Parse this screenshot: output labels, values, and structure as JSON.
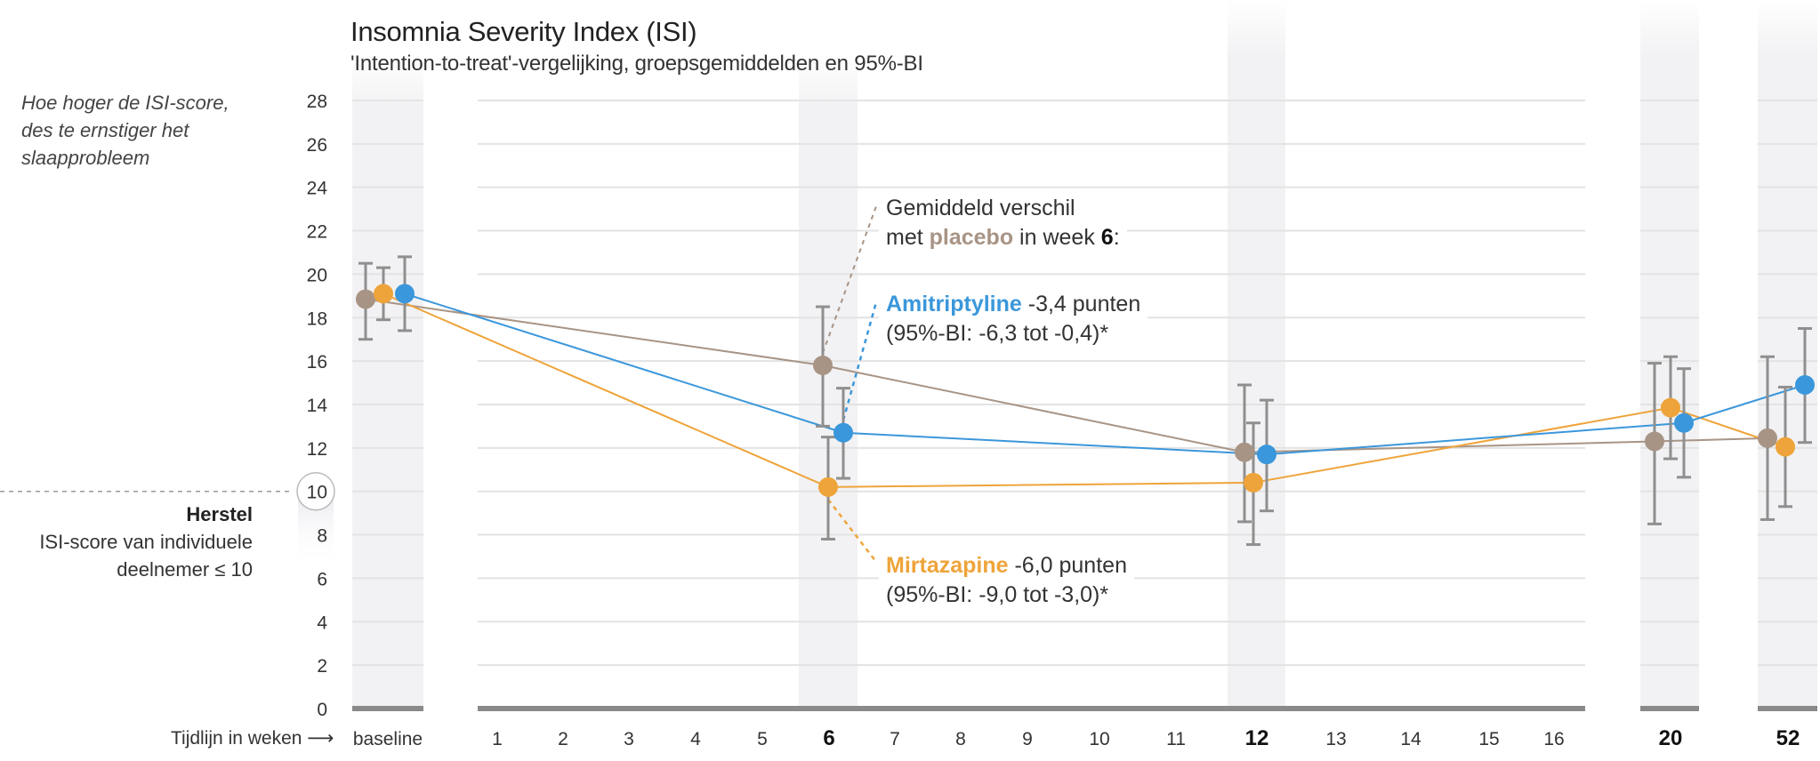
{
  "chart_data": {
    "type": "line",
    "title": "Insomnia Severity Index (ISI)",
    "subtitle": "'Intention-to-treat'-vergelijking, groepsgemiddelden en 95%-BI",
    "ylabel_note": [
      "Hoe hoger de ISI-score,",
      "des te ernstiger het",
      "slaapprobleem"
    ],
    "xlabel": "Tijdlijn in weken",
    "ylim": [
      0,
      28
    ],
    "yticks": [
      0,
      2,
      4,
      6,
      8,
      10,
      12,
      14,
      16,
      18,
      20,
      22,
      24,
      26,
      28
    ],
    "highlight_ytick": 10,
    "grid": true,
    "x_tick_labels": [
      "baseline",
      "1",
      "2",
      "3",
      "4",
      "5",
      "6",
      "7",
      "8",
      "9",
      "10",
      "11",
      "12",
      "13",
      "14",
      "15",
      "16",
      "20",
      "52"
    ],
    "bold_x_ticks": [
      "6",
      "12",
      "20",
      "52"
    ],
    "measurement_points": [
      "baseline",
      "6",
      "12",
      "20",
      "52"
    ],
    "series": [
      {
        "name": "placebo",
        "color": "#a89485",
        "values": [
          18.85,
          15.8,
          11.8,
          12.3,
          12.45
        ],
        "ci_low": [
          17.0,
          13.0,
          8.6,
          8.5,
          8.7
        ],
        "ci_high": [
          20.5,
          18.5,
          14.9,
          15.9,
          16.2
        ]
      },
      {
        "name": "mirtazapine",
        "color": "#eea43a",
        "values": [
          19.1,
          10.2,
          10.4,
          13.85,
          12.05
        ],
        "ci_low": [
          17.9,
          7.8,
          7.55,
          11.5,
          9.3
        ],
        "ci_high": [
          20.3,
          12.5,
          13.15,
          16.2,
          14.8
        ]
      },
      {
        "name": "amitriptyline",
        "color": "#3b97db",
        "values": [
          19.1,
          12.7,
          11.7,
          13.15,
          14.9
        ],
        "ci_low": [
          17.4,
          10.6,
          9.1,
          10.65,
          12.25
        ],
        "ci_high": [
          20.8,
          14.75,
          14.2,
          15.65,
          17.5
        ]
      }
    ],
    "recovery_label": {
      "head": "Herstel",
      "line1": "ISI-score van individuele",
      "line2": "deelnemer ≤ 10",
      "threshold": 10
    },
    "annotations": {
      "placebo_intro": {
        "line1": "Gemiddeld verschil",
        "pre": "met ",
        "placebo": "placebo",
        "mid": " in week ",
        "week": "6",
        "post": ":"
      },
      "amitriptyline": {
        "name": "Amitriptyline",
        "diff": " -3,4 punten",
        "ci": "(95%-BI: -6,3 tot -0,4)*"
      },
      "mirtazapine": {
        "name": "Mirtazapine",
        "diff": " -6,0 punten",
        "ci": "(95%-BI: -9,0 tot -3,0)*"
      }
    }
  }
}
